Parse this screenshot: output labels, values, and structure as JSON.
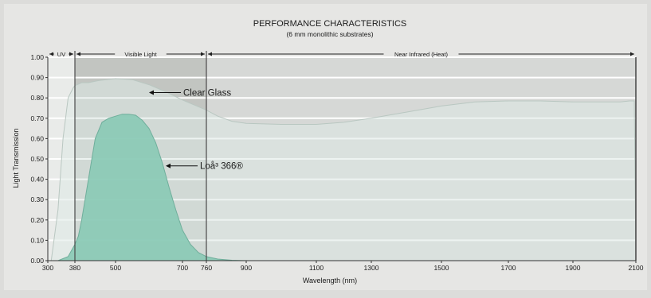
{
  "chart_data": {
    "type": "area",
    "title": "PERFORMANCE CHARACTERISTICS",
    "subtitle": "(6 mm monolithic substrates)",
    "xlabel": "Wavelength (nm)",
    "ylabel": "Light Transmission",
    "xlim": [
      300,
      2100
    ],
    "ylim": [
      0,
      1
    ],
    "x_ticks": [
      300,
      380,
      500,
      700,
      760,
      900,
      1100,
      1300,
      1500,
      1700,
      1900,
      2100
    ],
    "y_ticks": [
      0,
      0.1,
      0.2,
      0.3,
      0.4,
      0.5,
      0.6,
      0.7,
      0.8,
      0.9,
      1.0
    ],
    "y_tick_labels": [
      "0.00",
      "0.10",
      "0.20",
      "0.30",
      "0.40",
      "0.50",
      "0.60",
      "0.70",
      "0.80",
      "0.90",
      "1.00"
    ],
    "grid": true,
    "regions": [
      {
        "label": "UV",
        "from": 300,
        "to": 380,
        "color": "#e9ebe9"
      },
      {
        "label": "Visible Light",
        "from": 380,
        "to": 760,
        "color": "#c2c5c1"
      },
      {
        "label": "Near Infrared (Heat)",
        "from": 760,
        "to": 2100,
        "color": "#d6d8d6"
      }
    ],
    "series": [
      {
        "name": "Clear Glass",
        "color": "#dfe9e5",
        "x": [
          310,
          330,
          345,
          360,
          375,
          380,
          400,
          420,
          450,
          500,
          550,
          600,
          650,
          700,
          760,
          800,
          850,
          900,
          1000,
          1100,
          1200,
          1300,
          1400,
          1500,
          1600,
          1700,
          1800,
          1900,
          2000,
          2050,
          2080,
          2095,
          2100
        ],
        "y": [
          0.0,
          0.25,
          0.6,
          0.8,
          0.85,
          0.86,
          0.875,
          0.875,
          0.885,
          0.895,
          0.89,
          0.865,
          0.83,
          0.79,
          0.74,
          0.71,
          0.685,
          0.675,
          0.67,
          0.67,
          0.68,
          0.7,
          0.73,
          0.76,
          0.78,
          0.785,
          0.785,
          0.78,
          0.78,
          0.78,
          0.785,
          0.785,
          0.0
        ]
      },
      {
        "name": "Loå³ 366®",
        "color": "#8ccab6",
        "x": [
          330,
          360,
          380,
          390,
          400,
          420,
          440,
          460,
          480,
          500,
          520,
          540,
          560,
          580,
          600,
          620,
          640,
          660,
          680,
          700,
          720,
          740,
          760,
          800,
          850,
          900,
          950
        ],
        "y": [
          0.0,
          0.02,
          0.08,
          0.12,
          0.2,
          0.4,
          0.6,
          0.68,
          0.7,
          0.71,
          0.72,
          0.72,
          0.715,
          0.69,
          0.65,
          0.58,
          0.48,
          0.36,
          0.25,
          0.15,
          0.08,
          0.04,
          0.02,
          0.008,
          0.002,
          0.0,
          0.0
        ]
      }
    ],
    "annotations": [
      {
        "text": "Clear Glass",
        "x": 600,
        "y": 0.826
      },
      {
        "text": "Loå³ 366®",
        "x": 650,
        "y": 0.466
      }
    ]
  }
}
